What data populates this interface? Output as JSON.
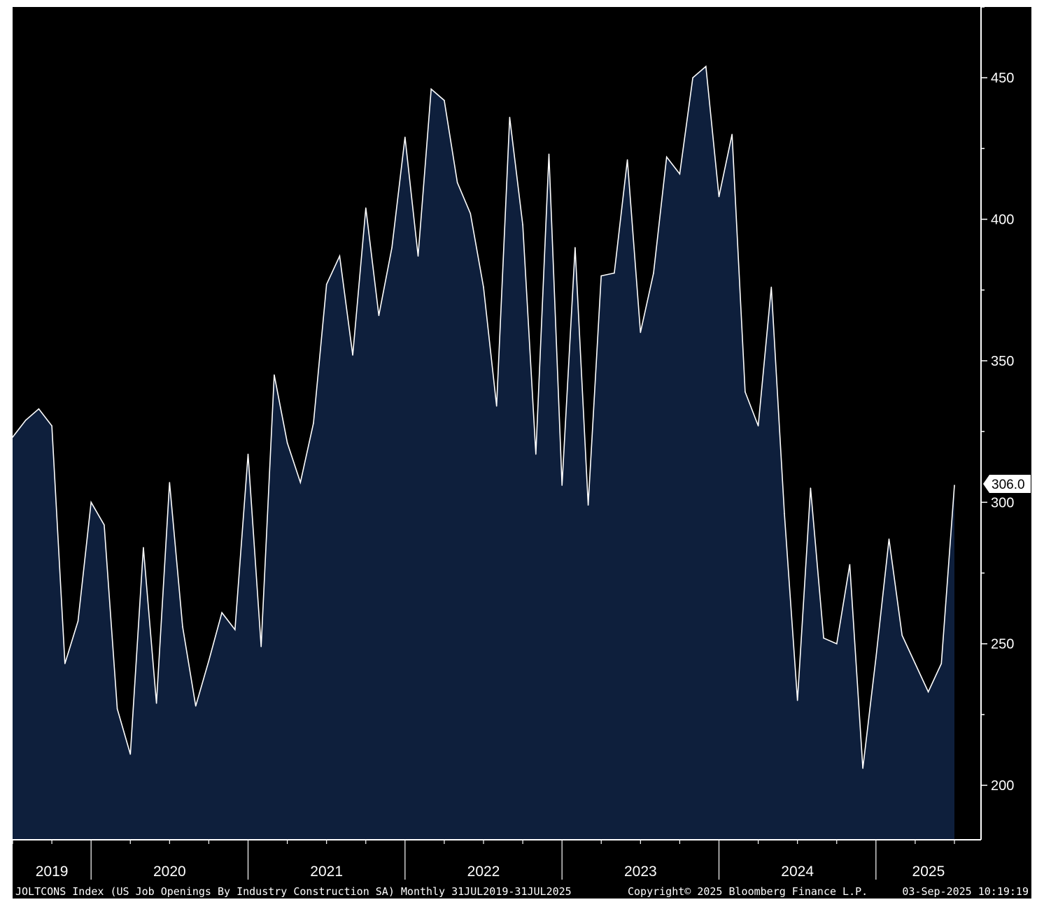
{
  "chart_data": {
    "type": "area",
    "series_start": "2019-07",
    "frequency": "monthly",
    "y": [
      323,
      329,
      333,
      327,
      243,
      258,
      300,
      292,
      227,
      211,
      284,
      229,
      307,
      256,
      228,
      244,
      261,
      255,
      317,
      249,
      345,
      321,
      307,
      328,
      377,
      387,
      352,
      404,
      366,
      390,
      429,
      387,
      446,
      442,
      413,
      402,
      376,
      334,
      436,
      398,
      317,
      423,
      306,
      390,
      299,
      380,
      381,
      421,
      360,
      381,
      422,
      416,
      450,
      454,
      408,
      430,
      339,
      327,
      376,
      296,
      230,
      305,
      252,
      250,
      278,
      206,
      245,
      287,
      253,
      243,
      233,
      243,
      306
    ],
    "yticks": [
      200,
      250,
      300,
      350,
      400,
      450
    ],
    "ylim": [
      181,
      475
    ],
    "x_year_labels": [
      "2019",
      "2020",
      "2021",
      "2022",
      "2023",
      "2024",
      "2025"
    ],
    "last_value_label": "306.0",
    "grid": false,
    "colors": {
      "plot_background": "#000000",
      "area_fill": "#0e1f3c",
      "line": "#ffffff",
      "axis": "#ffffff",
      "last_value_box": "#ffffff"
    }
  },
  "footer": {
    "title": "JOLTCONS Index (US Job Openings By Industry Construction SA)  Monthly 31JUL2019-31JUL2025",
    "copyright": "Copyright© 2025 Bloomberg Finance L.P.",
    "timestamp": "03-Sep-2025 10:19:19"
  }
}
